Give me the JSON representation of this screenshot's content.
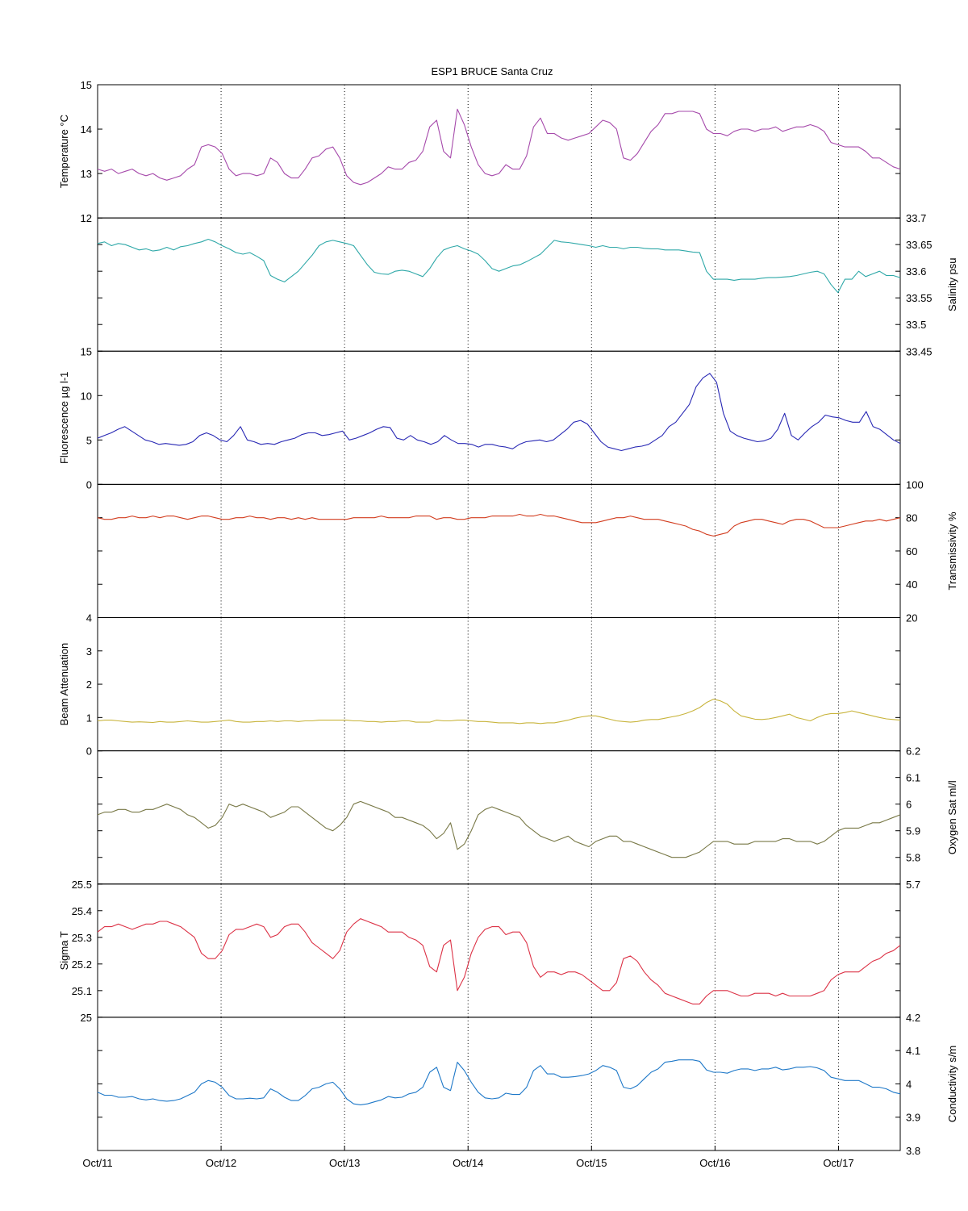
{
  "chart_data": {
    "type": "line",
    "title": "ESP1 BRUCE Santa Cruz",
    "x": {
      "range": [
        "Oct/11",
        "Oct/17 12:00"
      ],
      "tick_labels": [
        "Oct/11",
        "Oct/12",
        "Oct/13",
        "Oct/14",
        "Oct/15",
        "Oct/16",
        "Oct/17"
      ],
      "grid": "dotted vertical at each day"
    },
    "panels": [
      {
        "name": "temperature",
        "ylabel": "Temperature °C",
        "axis_side": "left",
        "ylim": [
          12,
          15
        ],
        "yticks": [
          "12",
          "13",
          "14",
          "15"
        ],
        "color": "#a64aab",
        "values": [
          13.1,
          13.05,
          13.1,
          13.0,
          13.05,
          13.1,
          13.0,
          12.95,
          13.0,
          12.9,
          12.85,
          12.9,
          12.95,
          13.1,
          13.2,
          13.6,
          13.65,
          13.6,
          13.45,
          13.1,
          12.95,
          13.0,
          13.0,
          12.95,
          13.0,
          13.35,
          13.25,
          13.0,
          12.9,
          12.9,
          13.1,
          13.35,
          13.4,
          13.55,
          13.6,
          13.35,
          12.95,
          12.8,
          12.75,
          12.8,
          12.9,
          13.0,
          13.15,
          13.1,
          13.1,
          13.25,
          13.3,
          13.5,
          14.05,
          14.2,
          13.5,
          13.35,
          14.45,
          14.1,
          13.6,
          13.2,
          13.0,
          12.95,
          13.0,
          13.2,
          13.1,
          13.1,
          13.4,
          14.05,
          14.25,
          13.9,
          13.9,
          13.8,
          13.75,
          13.8,
          13.85,
          13.9,
          14.05,
          14.2,
          14.15,
          14.0,
          13.35,
          13.3,
          13.45,
          13.7,
          13.95,
          14.1,
          14.35,
          14.35,
          14.4,
          14.4,
          14.4,
          14.35,
          14.0,
          13.9,
          13.9,
          13.85,
          13.95,
          14.0,
          14.0,
          13.95,
          14.0,
          14.0,
          14.05,
          13.95,
          14.0,
          14.05,
          14.05,
          14.1,
          14.05,
          13.95,
          13.7,
          13.65,
          13.6,
          13.6,
          13.6,
          13.5,
          13.35,
          13.35,
          13.25,
          13.15,
          13.1
        ]
      },
      {
        "name": "salinity",
        "ylabel": "Salinity psu",
        "axis_side": "right",
        "ylim": [
          33.45,
          33.7
        ],
        "yticks": [
          "33.45",
          "33.5",
          "33.55",
          "33.6",
          "33.65",
          "33.7"
        ],
        "color": "#2ea8a8",
        "values": [
          33.652,
          33.655,
          33.648,
          33.652,
          33.65,
          33.645,
          33.64,
          33.642,
          33.638,
          33.64,
          33.645,
          33.64,
          33.646,
          33.648,
          33.652,
          33.655,
          33.66,
          33.655,
          33.648,
          33.642,
          33.635,
          33.632,
          33.635,
          33.628,
          33.62,
          33.592,
          33.585,
          33.58,
          33.59,
          33.6,
          33.615,
          33.63,
          33.648,
          33.655,
          33.658,
          33.655,
          33.652,
          33.648,
          33.63,
          33.612,
          33.598,
          33.595,
          33.594,
          33.6,
          33.602,
          33.6,
          33.595,
          33.59,
          33.605,
          33.625,
          33.64,
          33.645,
          33.648,
          33.642,
          33.638,
          33.632,
          33.62,
          33.605,
          33.6,
          33.605,
          33.61,
          33.612,
          33.618,
          33.625,
          33.632,
          33.645,
          33.658,
          33.655,
          33.654,
          33.652,
          33.65,
          33.648,
          33.645,
          33.648,
          33.645,
          33.645,
          33.642,
          33.645,
          33.645,
          33.643,
          33.642,
          33.642,
          33.64,
          33.64,
          33.64,
          33.638,
          33.636,
          33.635,
          33.6,
          33.585,
          33.585,
          33.585,
          33.583,
          33.585,
          33.585,
          33.585,
          33.587,
          33.588,
          33.588,
          33.589,
          33.59,
          33.592,
          33.595,
          33.598,
          33.6,
          33.595,
          33.575,
          33.56,
          33.585,
          33.585,
          33.6,
          33.59,
          33.595,
          33.6,
          33.592,
          33.592,
          33.588
        ]
      },
      {
        "name": "fluorescence",
        "ylabel": "Fluorescence µg l-1",
        "axis_side": "left",
        "ylim": [
          0,
          15
        ],
        "yticks": [
          "0",
          "5",
          "10",
          "15"
        ],
        "color": "#2828b4",
        "values": [
          5.2,
          5.5,
          5.8,
          6.2,
          6.5,
          6.0,
          5.5,
          5.0,
          4.8,
          4.5,
          4.6,
          4.5,
          4.4,
          4.5,
          4.8,
          5.5,
          5.8,
          5.5,
          5.0,
          4.8,
          5.5,
          6.5,
          5.0,
          4.8,
          4.5,
          4.6,
          4.5,
          4.8,
          5.0,
          5.2,
          5.6,
          5.8,
          5.8,
          5.5,
          5.6,
          5.8,
          6.0,
          5.0,
          5.2,
          5.5,
          5.8,
          6.2,
          6.5,
          6.4,
          5.2,
          5.0,
          5.5,
          5.0,
          4.8,
          4.5,
          4.8,
          5.5,
          5.0,
          4.6,
          4.6,
          4.5,
          4.2,
          4.5,
          4.5,
          4.3,
          4.2,
          4.0,
          4.5,
          4.8,
          4.9,
          5.0,
          4.8,
          5.0,
          5.6,
          6.2,
          7.0,
          7.2,
          6.8,
          5.8,
          4.8,
          4.2,
          4.0,
          3.8,
          4.0,
          4.2,
          4.3,
          4.5,
          5.0,
          5.5,
          6.5,
          7.0,
          8.0,
          9.0,
          11.0,
          12.0,
          12.5,
          11.5,
          8.0,
          6.0,
          5.5,
          5.2,
          5.0,
          4.8,
          4.9,
          5.2,
          6.2,
          8.0,
          5.5,
          5.0,
          5.8,
          6.5,
          7.0,
          7.8,
          7.6,
          7.5,
          7.2,
          7.0,
          7.0,
          8.2,
          6.5,
          6.2,
          5.6,
          5.0,
          4.6
        ]
      },
      {
        "name": "transmissivity",
        "ylabel": "Transmissivity %",
        "axis_side": "right",
        "ylim": [
          20,
          100
        ],
        "yticks": [
          "20",
          "40",
          "60",
          "80",
          "100"
        ],
        "color": "#d23c1e",
        "values": [
          80,
          79,
          79,
          80,
          80,
          81,
          80,
          80,
          81,
          80,
          81,
          81,
          80,
          79,
          80,
          81,
          81,
          80,
          79,
          79,
          80,
          80,
          81,
          80,
          80,
          79,
          80,
          80,
          79,
          80,
          79,
          80,
          79,
          79,
          79,
          79,
          79,
          80,
          80,
          80,
          80,
          81,
          80,
          80,
          80,
          80,
          81,
          81,
          81,
          79,
          80,
          80,
          79,
          79,
          80,
          80,
          80,
          81,
          81,
          81,
          81,
          82,
          81,
          81,
          82,
          81,
          81,
          80,
          79,
          78,
          77,
          77,
          77,
          78,
          79,
          80,
          80,
          81,
          80,
          79,
          79,
          79,
          78,
          77,
          76,
          75,
          73,
          72,
          70,
          69,
          70,
          71,
          75,
          77,
          78,
          79,
          79,
          78,
          77,
          76,
          78,
          79,
          79,
          78,
          76,
          74,
          74,
          74,
          75,
          76,
          77,
          78,
          78,
          79,
          78,
          79,
          80
        ]
      },
      {
        "name": "beam-attenuation",
        "ylabel": "Beam Attenuation",
        "axis_side": "left",
        "ylim": [
          0,
          4
        ],
        "yticks": [
          "0",
          "1",
          "2",
          "3",
          "4"
        ],
        "color": "#c8b43c",
        "values": [
          0.9,
          0.92,
          0.92,
          0.9,
          0.88,
          0.86,
          0.87,
          0.86,
          0.85,
          0.88,
          0.86,
          0.86,
          0.88,
          0.9,
          0.88,
          0.86,
          0.86,
          0.88,
          0.9,
          0.92,
          0.88,
          0.86,
          0.86,
          0.88,
          0.88,
          0.9,
          0.88,
          0.9,
          0.9,
          0.88,
          0.9,
          0.9,
          0.92,
          0.92,
          0.92,
          0.92,
          0.92,
          0.9,
          0.9,
          0.88,
          0.88,
          0.86,
          0.88,
          0.88,
          0.9,
          0.9,
          0.86,
          0.86,
          0.86,
          0.92,
          0.9,
          0.9,
          0.92,
          0.92,
          0.9,
          0.88,
          0.88,
          0.86,
          0.84,
          0.84,
          0.84,
          0.82,
          0.84,
          0.84,
          0.82,
          0.84,
          0.84,
          0.88,
          0.92,
          0.98,
          1.02,
          1.05,
          1.05,
          1.0,
          0.95,
          0.9,
          0.88,
          0.86,
          0.88,
          0.92,
          0.94,
          0.94,
          0.98,
          1.02,
          1.06,
          1.12,
          1.2,
          1.3,
          1.45,
          1.55,
          1.5,
          1.4,
          1.2,
          1.05,
          1.0,
          0.95,
          0.94,
          0.96,
          1.0,
          1.05,
          1.1,
          1.0,
          0.95,
          0.9,
          1.0,
          1.08,
          1.12,
          1.12,
          1.15,
          1.2,
          1.15,
          1.1,
          1.05,
          1.0,
          0.96,
          0.94,
          0.92
        ]
      },
      {
        "name": "oxygen-sat",
        "ylabel": "Oxygen Sat ml/l",
        "axis_side": "right",
        "ylim": [
          5.7,
          6.2
        ],
        "yticks": [
          "5.7",
          "5.8",
          "5.9",
          "6",
          "6.1",
          "6.2"
        ],
        "color": "#787846",
        "values": [
          5.96,
          5.97,
          5.97,
          5.98,
          5.98,
          5.97,
          5.97,
          5.98,
          5.98,
          5.99,
          6.0,
          5.99,
          5.98,
          5.96,
          5.95,
          5.93,
          5.91,
          5.92,
          5.95,
          6.0,
          5.99,
          6.0,
          5.99,
          5.98,
          5.97,
          5.95,
          5.96,
          5.97,
          5.99,
          5.99,
          5.97,
          5.95,
          5.93,
          5.91,
          5.9,
          5.92,
          5.95,
          6.0,
          6.01,
          6.0,
          5.99,
          5.98,
          5.97,
          5.95,
          5.95,
          5.94,
          5.93,
          5.92,
          5.9,
          5.87,
          5.89,
          5.93,
          5.83,
          5.85,
          5.9,
          5.96,
          5.98,
          5.99,
          5.98,
          5.97,
          5.96,
          5.95,
          5.92,
          5.9,
          5.88,
          5.87,
          5.86,
          5.87,
          5.88,
          5.86,
          5.85,
          5.84,
          5.86,
          5.87,
          5.88,
          5.88,
          5.86,
          5.86,
          5.85,
          5.84,
          5.83,
          5.82,
          5.81,
          5.8,
          5.8,
          5.8,
          5.81,
          5.82,
          5.84,
          5.86,
          5.86,
          5.86,
          5.85,
          5.85,
          5.85,
          5.86,
          5.86,
          5.86,
          5.86,
          5.87,
          5.87,
          5.86,
          5.86,
          5.86,
          5.85,
          5.86,
          5.88,
          5.9,
          5.91,
          5.91,
          5.91,
          5.92,
          5.93,
          5.93,
          5.94,
          5.95,
          5.96
        ]
      },
      {
        "name": "sigma-t",
        "ylabel": "Sigma T",
        "axis_side": "left",
        "ylim": [
          25,
          25.5
        ],
        "yticks": [
          "25",
          "25.1",
          "25.2",
          "25.3",
          "25.4",
          "25.5"
        ],
        "color": "#dc3246",
        "values": [
          25.32,
          25.34,
          25.34,
          25.35,
          25.34,
          25.33,
          25.34,
          25.35,
          25.35,
          25.36,
          25.36,
          25.35,
          25.34,
          25.32,
          25.3,
          25.24,
          25.22,
          25.22,
          25.25,
          25.31,
          25.33,
          25.33,
          25.34,
          25.35,
          25.34,
          25.3,
          25.31,
          25.34,
          25.35,
          25.35,
          25.32,
          25.28,
          25.26,
          25.24,
          25.22,
          25.25,
          25.32,
          25.35,
          25.37,
          25.36,
          25.35,
          25.34,
          25.32,
          25.32,
          25.32,
          25.3,
          25.29,
          25.27,
          25.19,
          25.17,
          25.27,
          25.29,
          25.1,
          25.15,
          25.24,
          25.3,
          25.33,
          25.34,
          25.34,
          25.31,
          25.32,
          25.32,
          25.28,
          25.19,
          25.15,
          25.17,
          25.17,
          25.16,
          25.17,
          25.17,
          25.16,
          25.14,
          25.12,
          25.1,
          25.1,
          25.13,
          25.22,
          25.23,
          25.21,
          25.17,
          25.14,
          25.12,
          25.09,
          25.08,
          25.07,
          25.06,
          25.05,
          25.05,
          25.08,
          25.1,
          25.1,
          25.1,
          25.09,
          25.08,
          25.08,
          25.09,
          25.09,
          25.09,
          25.08,
          25.09,
          25.08,
          25.08,
          25.08,
          25.08,
          25.09,
          25.1,
          25.14,
          25.16,
          25.17,
          25.17,
          25.17,
          25.19,
          25.21,
          25.22,
          25.24,
          25.25,
          25.27
        ]
      },
      {
        "name": "conductivity",
        "ylabel": "Conductivity s/m",
        "axis_side": "right",
        "ylim": [
          3.8,
          4.2
        ],
        "yticks": [
          "3.8",
          "3.9",
          "4",
          "4.1",
          "4.2"
        ],
        "color": "#1e78c8",
        "values": [
          3.975,
          3.966,
          3.966,
          3.96,
          3.96,
          3.962,
          3.955,
          3.952,
          3.955,
          3.95,
          3.948,
          3.95,
          3.955,
          3.965,
          3.975,
          4.0,
          4.01,
          4.005,
          3.99,
          3.965,
          3.955,
          3.955,
          3.957,
          3.955,
          3.958,
          3.985,
          3.975,
          3.96,
          3.95,
          3.95,
          3.965,
          3.985,
          3.99,
          4.0,
          4.005,
          3.985,
          3.955,
          3.94,
          3.937,
          3.94,
          3.946,
          3.952,
          3.962,
          3.958,
          3.96,
          3.97,
          3.975,
          3.99,
          4.035,
          4.05,
          3.99,
          3.98,
          4.065,
          4.04,
          4.005,
          3.975,
          3.958,
          3.955,
          3.958,
          3.972,
          3.968,
          3.968,
          3.99,
          4.04,
          4.055,
          4.03,
          4.03,
          4.02,
          4.02,
          4.022,
          4.025,
          4.03,
          4.04,
          4.055,
          4.05,
          4.04,
          3.99,
          3.985,
          3.995,
          4.015,
          4.035,
          4.045,
          4.065,
          4.068,
          4.072,
          4.072,
          4.072,
          4.068,
          4.042,
          4.035,
          4.035,
          4.032,
          4.04,
          4.045,
          4.045,
          4.04,
          4.045,
          4.045,
          4.05,
          4.042,
          4.045,
          4.05,
          4.05,
          4.052,
          4.048,
          4.04,
          4.02,
          4.015,
          4.01,
          4.01,
          4.01,
          4.0,
          3.99,
          3.99,
          3.985,
          3.975,
          3.97
        ]
      }
    ]
  }
}
